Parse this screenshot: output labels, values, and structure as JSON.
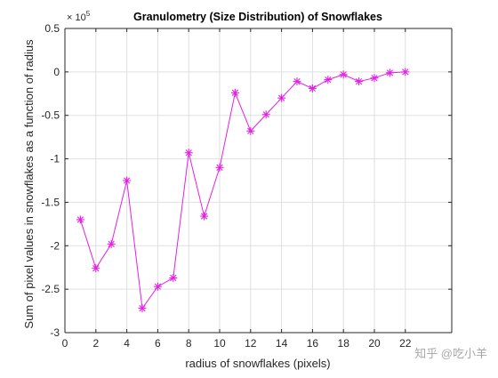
{
  "chart_data": {
    "type": "line",
    "title": "Granulometry (Size Distribution) of Snowflakes",
    "xlabel": "radius of snowflakes (pixels)",
    "ylabel": "Sum of pixel values in snowflakes as a function of radius",
    "xlim": [
      0,
      25
    ],
    "ylim": [
      -3,
      0.5
    ],
    "y_multiplier_label": "× 10",
    "y_multiplier_exponent": "5",
    "x_ticks": [
      0,
      2,
      4,
      6,
      8,
      10,
      12,
      14,
      16,
      18,
      20,
      22
    ],
    "y_ticks": [
      -3,
      -2.5,
      -2,
      -1.5,
      -1,
      -0.5,
      0,
      0.5
    ],
    "grid": true,
    "marker": "asterisk",
    "colors": {
      "series": "#e61ee6",
      "grid": "#dfdfdf",
      "axis": "#262626"
    },
    "series": [
      {
        "x": [
          1,
          2,
          3,
          4,
          5,
          6,
          7,
          8,
          9,
          10,
          11,
          12,
          13,
          14,
          15,
          16,
          17,
          18,
          19,
          20,
          21,
          22
        ],
        "y": [
          -1.7,
          -2.26,
          -1.98,
          -1.25,
          -2.72,
          -2.47,
          -2.37,
          -0.93,
          -1.66,
          -1.1,
          -0.24,
          -0.68,
          -0.49,
          -0.3,
          -0.11,
          -0.19,
          -0.09,
          -0.03,
          -0.11,
          -0.07,
          -0.01,
          0.0
        ]
      }
    ]
  },
  "watermark": "知乎 @吃小羊"
}
